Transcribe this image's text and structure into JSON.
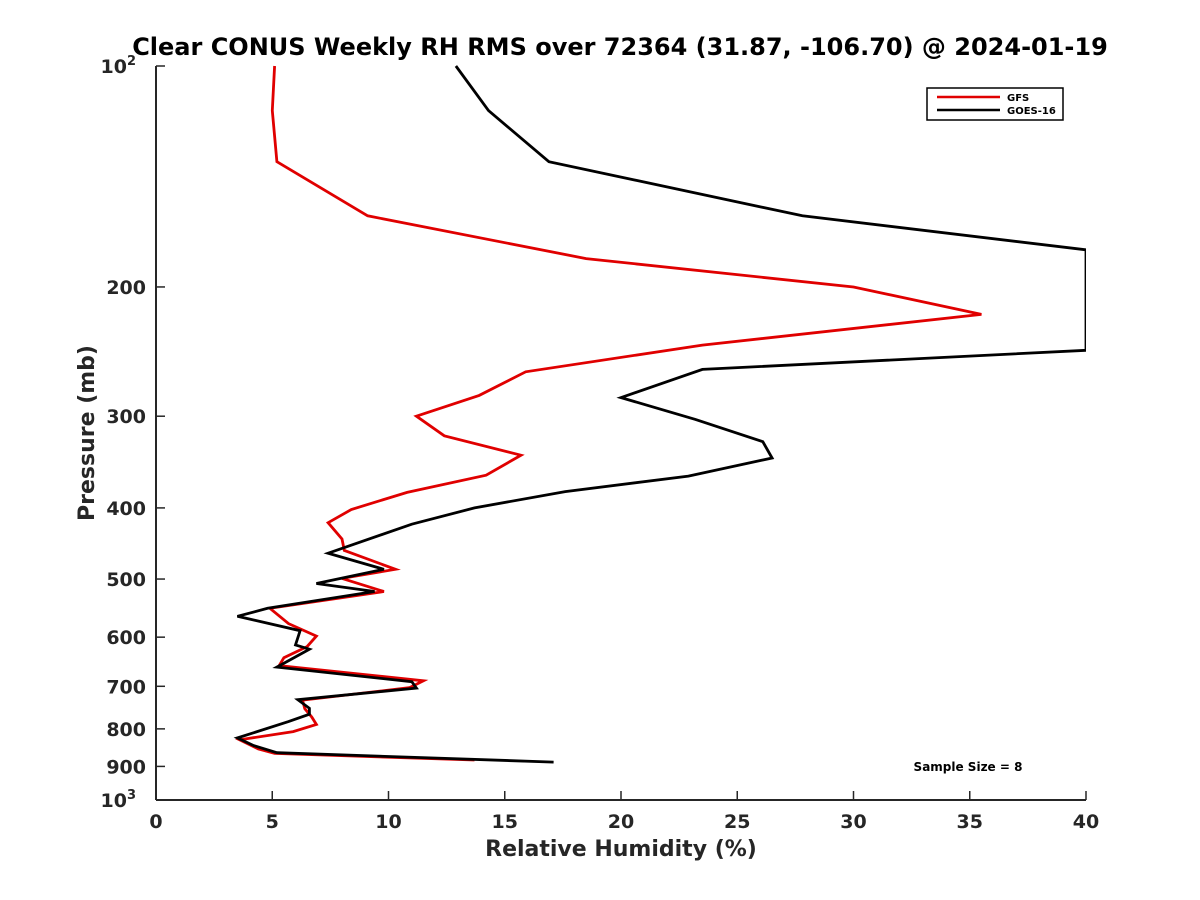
{
  "chart_data": {
    "type": "line",
    "title": "Clear CONUS Weekly RH RMS over 72364 (31.87, -106.70) @ 2024-01-19",
    "xlabel": "Relative Humidity (%)",
    "ylabel": "Pressure (mb)",
    "xlim": [
      0,
      40
    ],
    "ylim": [
      100,
      1000
    ],
    "yscale": "log",
    "y_reversed": true,
    "x_ticks": [
      "0",
      "5",
      "10",
      "15",
      "20",
      "25",
      "30",
      "35",
      "40"
    ],
    "y_ticks": [
      {
        "value": 100,
        "base": "10",
        "exp": "2"
      },
      {
        "value": 200,
        "label": "200"
      },
      {
        "value": 300,
        "label": "300"
      },
      {
        "value": 400,
        "label": "400"
      },
      {
        "value": 500,
        "label": "500"
      },
      {
        "value": 600,
        "label": "600"
      },
      {
        "value": 700,
        "label": "700"
      },
      {
        "value": 800,
        "label": "800"
      },
      {
        "value": 900,
        "label": "900"
      },
      {
        "value": 1000,
        "base": "10",
        "exp": "3"
      }
    ],
    "grid": false,
    "legend_position": "top-right",
    "annotation": "Sample Size = 8",
    "series": [
      {
        "name": "GFS",
        "color": "#e00000",
        "points": [
          [
            5.1,
            100
          ],
          [
            5.0,
            115
          ],
          [
            5.2,
            135
          ],
          [
            9.1,
            160
          ],
          [
            18.5,
            183
          ],
          [
            30.0,
            200
          ],
          [
            35.5,
            218
          ],
          [
            23.5,
            240
          ],
          [
            15.9,
            261
          ],
          [
            13.9,
            281
          ],
          [
            11.2,
            300
          ],
          [
            12.4,
            319
          ],
          [
            15.7,
            339
          ],
          [
            14.2,
            361
          ],
          [
            10.8,
            381
          ],
          [
            8.4,
            402
          ],
          [
            7.4,
            419
          ],
          [
            8.0,
            441
          ],
          [
            8.1,
            457
          ],
          [
            10.3,
            485
          ],
          [
            8.0,
            499
          ],
          [
            9.8,
            520
          ],
          [
            4.9,
            548
          ],
          [
            5.7,
            575
          ],
          [
            6.9,
            598
          ],
          [
            6.5,
            618
          ],
          [
            5.5,
            640
          ],
          [
            5.3,
            656
          ],
          [
            11.5,
            688
          ],
          [
            10.9,
            703
          ],
          [
            6.3,
            731
          ],
          [
            6.4,
            751
          ],
          [
            6.7,
            771
          ],
          [
            6.9,
            789
          ],
          [
            5.9,
            807
          ],
          [
            3.6,
            828
          ],
          [
            4.4,
            852
          ],
          [
            5.1,
            864
          ],
          [
            13.7,
            882
          ]
        ]
      },
      {
        "name": "GOES-16",
        "color": "#000000",
        "points": [
          [
            12.9,
            100
          ],
          [
            14.3,
            115
          ],
          [
            16.9,
            135
          ],
          [
            27.8,
            160
          ],
          [
            40.0,
            178
          ],
          [
            40.0,
            244
          ],
          [
            23.5,
            259
          ],
          [
            20.0,
            283
          ],
          [
            23.2,
            303
          ],
          [
            26.1,
            325
          ],
          [
            26.5,
            342
          ],
          [
            22.9,
            362
          ],
          [
            17.6,
            380
          ],
          [
            13.7,
            400
          ],
          [
            11.0,
            421
          ],
          [
            7.4,
            461
          ],
          [
            9.8,
            485
          ],
          [
            6.9,
            507
          ],
          [
            9.4,
            520
          ],
          [
            4.8,
            548
          ],
          [
            3.5,
            562
          ],
          [
            6.2,
            588
          ],
          [
            6.0,
            615
          ],
          [
            6.6,
            623
          ],
          [
            5.2,
            659
          ],
          [
            11.0,
            690
          ],
          [
            11.2,
            704
          ],
          [
            6.1,
            730
          ],
          [
            6.6,
            750
          ],
          [
            6.6,
            764
          ],
          [
            5.7,
            782
          ],
          [
            3.5,
            823
          ],
          [
            4.2,
            843
          ],
          [
            5.2,
            862
          ],
          [
            17.1,
            888
          ]
        ]
      }
    ]
  }
}
